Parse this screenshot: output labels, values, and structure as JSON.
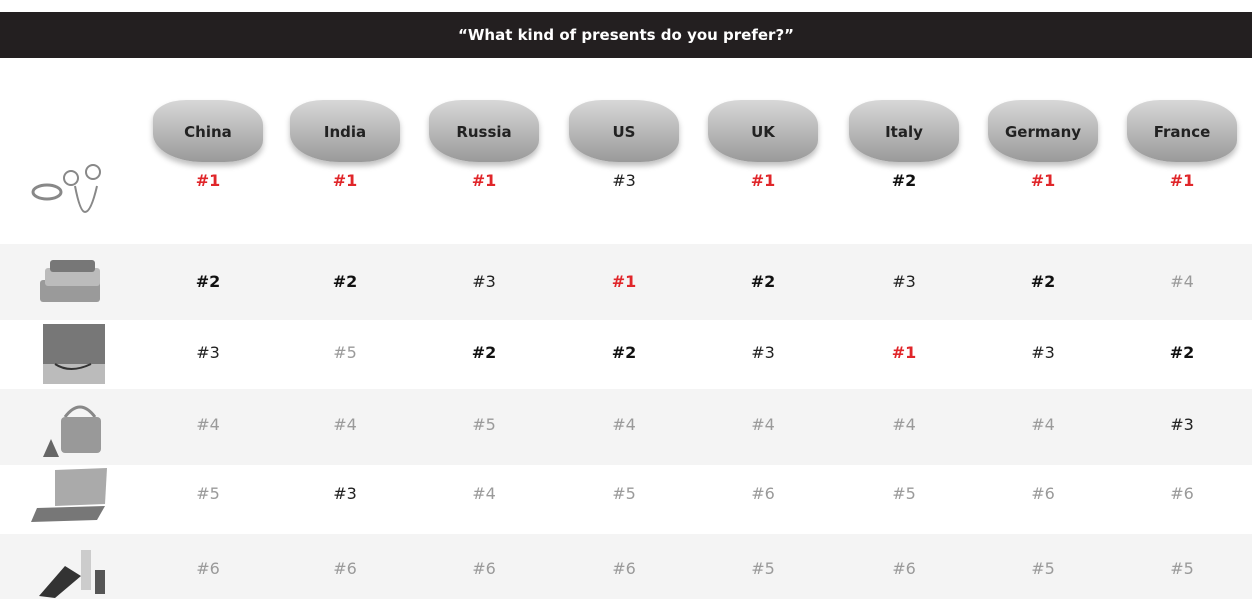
{
  "title": "“What kind of presents do you prefer?”",
  "columns": [
    "China",
    "India",
    "Russia",
    "US",
    "UK",
    "Italy",
    "Germany",
    "France"
  ],
  "rows": [
    [
      "#1",
      "#1",
      "#1",
      "#3",
      "#1",
      "#2",
      "#1",
      "#1"
    ],
    [
      "#2",
      "#2",
      "#3",
      "#1",
      "#2",
      "#3",
      "#2",
      "#4"
    ],
    [
      "#3",
      "#5",
      "#2",
      "#2",
      "#3",
      "#1",
      "#3",
      "#2"
    ],
    [
      "#4",
      "#4",
      "#5",
      "#4",
      "#4",
      "#4",
      "#4",
      "#3"
    ],
    [
      "#5",
      "#3",
      "#4",
      "#5",
      "#6",
      "#5",
      "#6",
      "#6"
    ],
    [
      "#6",
      "#6",
      "#6",
      "#6",
      "#5",
      "#6",
      "#5",
      "#5"
    ]
  ]
}
